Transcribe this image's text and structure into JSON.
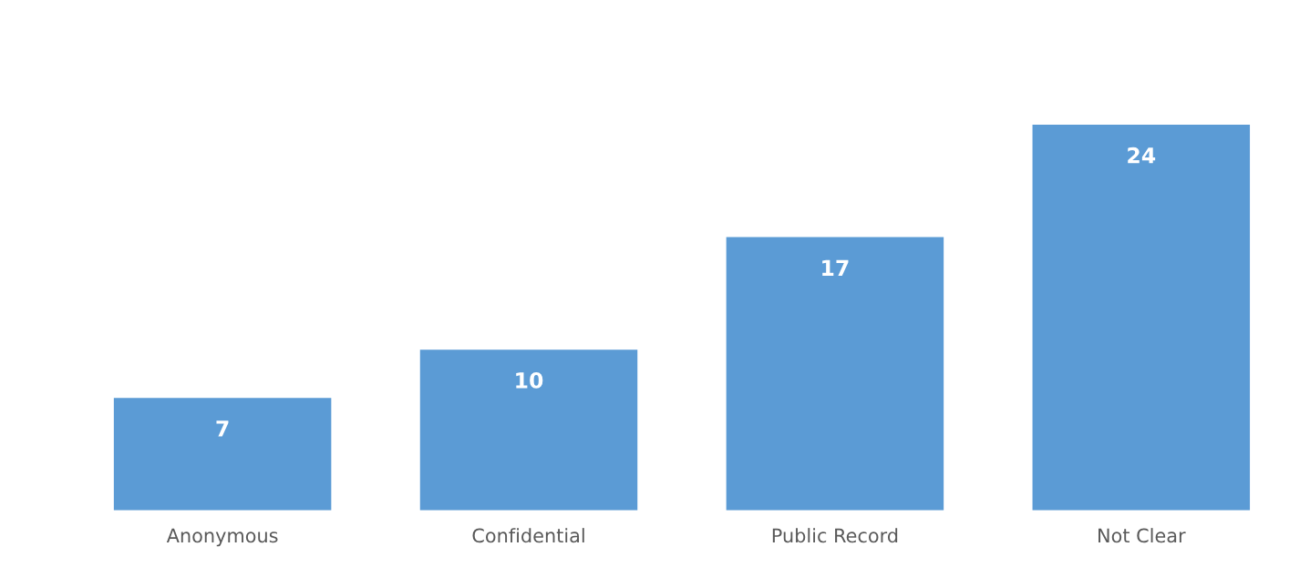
{
  "chart_data": {
    "type": "bar",
    "categories": [
      "Anonymous",
      "Confidential",
      "Public Record",
      "Not Clear"
    ],
    "values": [
      7,
      10,
      17,
      24
    ],
    "color": "#5b9bd5",
    "data_labels": true,
    "grid": false,
    "legend": false
  }
}
